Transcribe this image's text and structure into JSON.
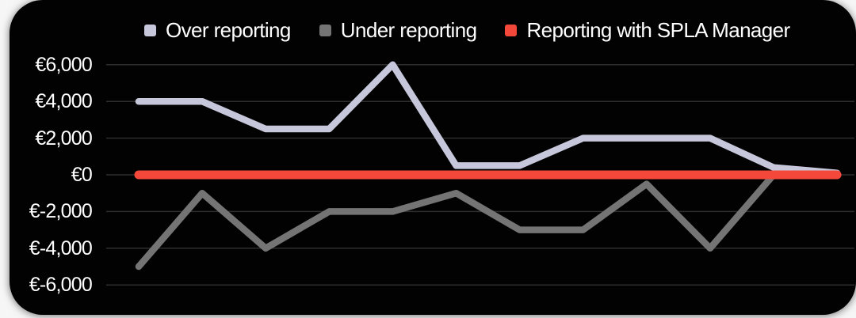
{
  "chart_data": {
    "type": "line",
    "title": "",
    "legend_position": "top",
    "background_color": "#020202",
    "grid": "horizontal",
    "grid_color": "#2e2e2e",
    "text_color": "#ffffff",
    "x_tick_labels": [],
    "x_count": 12,
    "y_ticks": [
      "€6,000",
      "€4,000",
      "€2,000",
      "€0",
      "€-2,000",
      "€-4,000",
      "€-6,000"
    ],
    "y_tick_values": [
      6000,
      4000,
      2000,
      0,
      -2000,
      -4000,
      -6000
    ],
    "ylim": [
      -6000,
      6000
    ],
    "series": [
      {
        "name": "Over reporting",
        "color": "#c6c7db",
        "values": [
          4000,
          4000,
          2500,
          2500,
          6000,
          500,
          500,
          2000,
          2000,
          2000,
          400,
          100
        ]
      },
      {
        "name": "Under reporting",
        "color": "#747474",
        "values": [
          -5000,
          -1000,
          -4000,
          -2000,
          -2000,
          -1000,
          -3000,
          -3000,
          -500,
          -4000,
          0,
          0
        ]
      },
      {
        "name": "Reporting with SPLA Manager",
        "color": "#f4483a",
        "values": [
          0,
          0,
          0,
          0,
          0,
          0,
          0,
          0,
          0,
          0,
          0,
          0
        ]
      }
    ]
  }
}
